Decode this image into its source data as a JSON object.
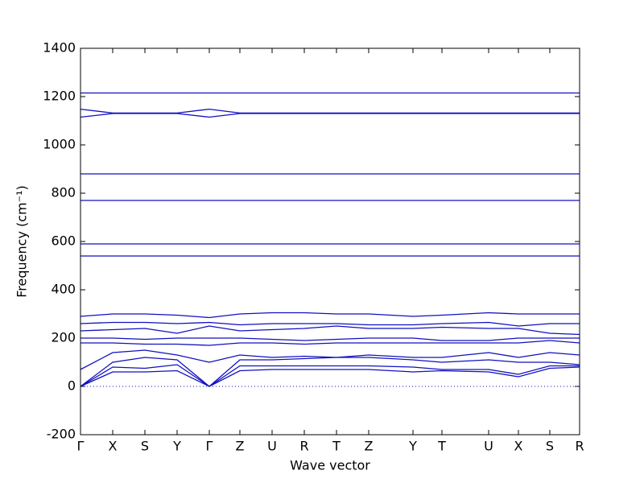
{
  "chart_data": {
    "type": "line",
    "xlabel": "Wave vector",
    "ylabel": "Frequency (cm⁻¹)",
    "x": [
      0,
      40,
      80,
      120,
      160,
      198,
      238,
      278,
      318,
      358,
      413,
      449,
      507,
      544,
      583,
      620
    ],
    "xlim": [
      0,
      620
    ],
    "xticks": [
      {
        "value": 0,
        "label": "Γ"
      },
      {
        "value": 40,
        "label": "X"
      },
      {
        "value": 80,
        "label": "S"
      },
      {
        "value": 120,
        "label": "Y"
      },
      {
        "value": 160,
        "label": "Γ"
      },
      {
        "value": 198,
        "label": "Z"
      },
      {
        "value": 238,
        "label": "U"
      },
      {
        "value": 278,
        "label": "R"
      },
      {
        "value": 318,
        "label": "T"
      },
      {
        "value": 358,
        "label": "Z"
      },
      {
        "value": 413,
        "label": "Y"
      },
      {
        "value": 449,
        "label": "T"
      },
      {
        "value": 507,
        "label": "U"
      },
      {
        "value": 544,
        "label": "X"
      },
      {
        "value": 583,
        "label": "S"
      },
      {
        "value": 620,
        "label": "R"
      }
    ],
    "ylim": [
      -200,
      1400
    ],
    "yticks": [
      -200,
      0,
      200,
      400,
      600,
      800,
      1000,
      1200,
      1400
    ],
    "color": "#1010c0",
    "reference_line": 0,
    "series": [
      {
        "values": [
          1215,
          1215,
          1215,
          1215,
          1215,
          1215,
          1215,
          1215,
          1215,
          1215,
          1215,
          1215,
          1215,
          1215,
          1215,
          1215
        ]
      },
      {
        "values": [
          1148,
          1132,
          1132,
          1132,
          1148,
          1132,
          1132,
          1132,
          1132,
          1132,
          1132,
          1132,
          1132,
          1132,
          1132,
          1132
        ]
      },
      {
        "values": [
          1115,
          1130,
          1130,
          1130,
          1115,
          1130,
          1130,
          1130,
          1130,
          1130,
          1130,
          1130,
          1130,
          1130,
          1130,
          1130
        ]
      },
      {
        "values": [
          880,
          880,
          880,
          880,
          880,
          880,
          880,
          880,
          880,
          880,
          880,
          880,
          880,
          880,
          880,
          880
        ]
      },
      {
        "values": [
          770,
          770,
          770,
          770,
          770,
          770,
          770,
          770,
          770,
          770,
          770,
          770,
          770,
          770,
          770,
          770
        ]
      },
      {
        "values": [
          590,
          590,
          590,
          590,
          590,
          590,
          590,
          590,
          590,
          590,
          590,
          590,
          590,
          590,
          590,
          590
        ]
      },
      {
        "values": [
          540,
          540,
          540,
          540,
          540,
          540,
          540,
          540,
          540,
          540,
          540,
          540,
          540,
          540,
          540,
          540
        ]
      },
      {
        "values": [
          0,
          60,
          60,
          65,
          0,
          65,
          70,
          70,
          70,
          70,
          60,
          65,
          60,
          40,
          75,
          80
        ]
      },
      {
        "values": [
          0,
          80,
          75,
          90,
          0,
          85,
          85,
          85,
          85,
          85,
          80,
          70,
          70,
          50,
          85,
          85
        ]
      },
      {
        "values": [
          0,
          100,
          120,
          110,
          0,
          110,
          110,
          115,
          120,
          120,
          110,
          100,
          110,
          100,
          100,
          90
        ]
      },
      {
        "values": [
          70,
          140,
          150,
          130,
          100,
          130,
          120,
          125,
          120,
          130,
          120,
          120,
          140,
          120,
          140,
          130
        ]
      },
      {
        "values": [
          180,
          180,
          175,
          175,
          170,
          180,
          180,
          175,
          180,
          180,
          180,
          180,
          180,
          180,
          190,
          180
        ]
      },
      {
        "values": [
          200,
          200,
          195,
          200,
          200,
          200,
          195,
          190,
          195,
          200,
          200,
          190,
          190,
          200,
          200,
          200
        ]
      },
      {
        "values": [
          230,
          235,
          240,
          220,
          250,
          230,
          235,
          240,
          250,
          240,
          240,
          245,
          240,
          240,
          220,
          215
        ]
      },
      {
        "values": [
          260,
          265,
          265,
          260,
          265,
          255,
          260,
          260,
          260,
          255,
          255,
          260,
          265,
          250,
          260,
          260
        ]
      },
      {
        "values": [
          290,
          300,
          300,
          295,
          285,
          300,
          305,
          305,
          300,
          300,
          290,
          295,
          305,
          300,
          300,
          300
        ]
      }
    ]
  }
}
